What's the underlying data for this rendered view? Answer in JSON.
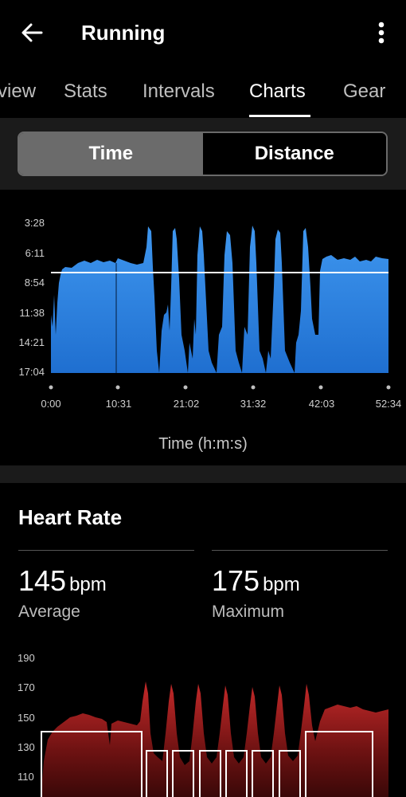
{
  "app": {
    "title": "Running"
  },
  "tabs": [
    {
      "label": "Overview"
    },
    {
      "label": "Stats"
    },
    {
      "label": "Intervals"
    },
    {
      "label": "Charts"
    },
    {
      "label": "Gear"
    }
  ],
  "toggle": {
    "time_label": "Time",
    "distance_label": "Distance",
    "selected": "Time"
  },
  "pace_chart": {
    "x_caption": "Time (h:m:s)",
    "y_ticks": [
      "3:28",
      "6:11",
      "8:54",
      "11:38",
      "14:21",
      "17:04"
    ],
    "x_ticks": [
      "0:00",
      "10:31",
      "21:02",
      "31:32",
      "42:03",
      "52:34"
    ]
  },
  "heart_rate": {
    "title": "Heart Rate",
    "average_value": "145",
    "average_unit": "bpm",
    "average_label": "Average",
    "maximum_value": "175",
    "maximum_unit": "bpm",
    "maximum_label": "Maximum",
    "y_ticks": [
      "190",
      "170",
      "150",
      "130",
      "110"
    ]
  },
  "chart_data": [
    {
      "type": "area",
      "xlabel": "Time (h:m:s)",
      "ylabel": "",
      "y_ticks": [
        "3:28",
        "6:11",
        "8:54",
        "11:38",
        "14:21",
        "17:04"
      ],
      "x_ticks": [
        "0:00",
        "10:31",
        "21:02",
        "31:32",
        "42:03",
        "52:34"
      ],
      "y_inverted": true,
      "average_line": "8:08",
      "series": [
        {
          "x": [
            "0:00",
            "1:30",
            "5:00",
            "10:00",
            "14:00",
            "15:30",
            "17:00",
            "18:20",
            "19:30",
            "21:00",
            "22:00",
            "23:40",
            "25:30",
            "26:50",
            "28:30",
            "30:00",
            "31:30",
            "33:00",
            "34:30",
            "36:20",
            "37:40",
            "39:30",
            "41:00",
            "42:20",
            "44:00",
            "48:00",
            "52:34"
          ],
          "y": [
            "9:30",
            "7:30",
            "7:20",
            "7:10",
            "7:00",
            "3:45",
            "13:50",
            "3:50",
            "14:30",
            "4:00",
            "12:30",
            "3:45",
            "15:00",
            "4:10",
            "15:20",
            "3:40",
            "14:40",
            "4:20",
            "15:00",
            "4:00",
            "14:50",
            "4:00",
            "12:00",
            "6:40",
            "6:30",
            "6:40",
            "6:50"
          ]
        }
      ]
    },
    {
      "type": "area",
      "title": "Heart Rate",
      "ylabel": "",
      "y_ticks": [
        "190",
        "170",
        "150",
        "130",
        "110"
      ],
      "ylim": [
        100,
        195
      ],
      "series": [
        {
          "x": [
            0,
            1,
            3,
            8,
            12,
            14,
            15.5,
            16.5,
            18,
            19.5,
            21,
            22.5,
            24,
            25.5,
            27,
            28.5,
            30,
            31.5,
            33,
            34.5,
            36,
            37.5,
            39,
            40.5,
            43,
            48,
            52.5
          ],
          "y": [
            118,
            140,
            145,
            144,
            140,
            146,
            168,
            122,
            168,
            125,
            167,
            126,
            166,
            125,
            165,
            126,
            166,
            125,
            166,
            127,
            167,
            128,
            148,
            152,
            154,
            153,
            150
          ]
        }
      ],
      "target_bands": [
        {
          "from": 0,
          "to": 14.5,
          "value": 140
        },
        {
          "from": 16.5,
          "to": 18.3,
          "value": 127
        },
        {
          "from": 20.2,
          "to": 22,
          "value": 127
        },
        {
          "from": 23.9,
          "to": 25.7,
          "value": 127
        },
        {
          "from": 27.6,
          "to": 29.4,
          "value": 127
        },
        {
          "from": 31.3,
          "to": 33.1,
          "value": 127
        },
        {
          "from": 35,
          "to": 36.8,
          "value": 127
        },
        {
          "from": 38.7,
          "to": 48,
          "value": 140
        }
      ]
    }
  ]
}
